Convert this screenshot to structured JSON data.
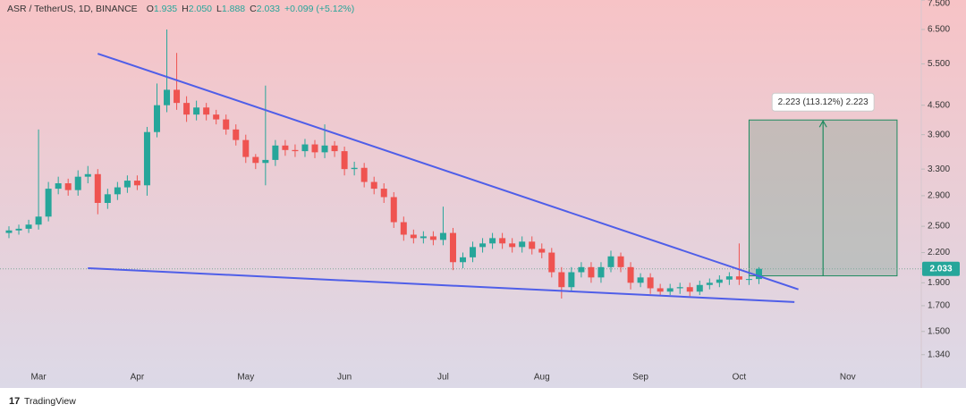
{
  "chart_data": {
    "type": "candlestick",
    "title": "ASR / TetherUS, 1D, BINANCE",
    "legend_values": [
      {
        "label": "O",
        "value": "1.935"
      },
      {
        "label": "H",
        "value": "2.050"
      },
      {
        "label": "L",
        "value": "1.888"
      },
      {
        "label": "C",
        "value": "2.033"
      }
    ],
    "change": "+0.099 (+5.12%)",
    "categories": [
      null,
      null,
      null,
      "Mar",
      null,
      null,
      null,
      null,
      null,
      null,
      null,
      null,
      null,
      "Apr",
      null,
      null,
      null,
      null,
      null,
      null,
      null,
      null,
      null,
      null,
      "May",
      null,
      null,
      null,
      null,
      null,
      null,
      null,
      null,
      null,
      "Jun",
      null,
      null,
      null,
      null,
      null,
      null,
      null,
      null,
      null,
      "Jul",
      null,
      null,
      null,
      null,
      null,
      null,
      null,
      null,
      null,
      "Aug",
      null,
      null,
      null,
      null,
      null,
      null,
      null,
      null,
      null,
      "Sep",
      null,
      null,
      null,
      null,
      null,
      null,
      null,
      null,
      null,
      "Oct",
      null,
      null,
      null,
      null,
      null,
      null,
      null,
      null,
      null,
      null,
      "Nov",
      null,
      null,
      null,
      null,
      null,
      null,
      null
    ],
    "open": [
      2.42,
      2.45,
      2.47,
      2.52,
      2.62,
      3.0,
      3.08,
      2.98,
      3.18,
      3.22,
      2.8,
      2.92,
      3.02,
      3.12,
      3.05,
      3.95,
      4.5,
      4.85,
      4.55,
      4.3,
      4.45,
      4.3,
      4.2,
      4.0,
      3.8,
      3.5,
      3.4,
      3.45,
      3.7,
      3.62,
      3.6,
      3.72,
      3.58,
      3.7,
      3.6,
      3.3,
      3.32,
      3.1,
      3.0,
      2.88,
      2.55,
      2.4,
      2.36,
      2.38,
      2.34,
      2.42,
      2.1,
      2.15,
      2.26,
      2.3,
      2.36,
      2.3,
      2.26,
      2.32,
      2.24,
      2.2,
      2.0,
      1.86,
      2.0,
      2.05,
      1.95,
      2.05,
      2.16,
      2.05,
      1.9,
      1.95,
      1.85,
      1.82,
      1.85,
      1.86,
      1.82,
      1.88,
      1.9,
      1.93,
      1.96,
      1.93,
      1.935,
      null,
      null,
      null,
      null,
      null,
      null,
      null,
      null,
      null,
      null,
      null,
      null,
      null,
      null,
      null,
      null
    ],
    "high": [
      2.5,
      2.52,
      2.58,
      4.0,
      3.1,
      3.18,
      3.15,
      3.28,
      3.35,
      3.3,
      3.0,
      3.1,
      3.2,
      3.2,
      4.05,
      5.0,
      6.5,
      5.8,
      4.7,
      4.6,
      4.55,
      4.4,
      4.3,
      4.1,
      3.9,
      3.55,
      4.95,
      3.8,
      3.8,
      3.72,
      3.82,
      3.8,
      4.1,
      3.78,
      3.68,
      3.42,
      3.4,
      3.18,
      3.08,
      2.95,
      2.62,
      2.46,
      2.44,
      2.44,
      2.75,
      2.48,
      2.2,
      2.32,
      2.36,
      2.42,
      2.42,
      2.36,
      2.38,
      2.38,
      2.3,
      2.25,
      2.05,
      2.05,
      2.1,
      2.1,
      2.1,
      2.22,
      2.2,
      2.1,
      1.99,
      1.99,
      1.89,
      1.89,
      1.9,
      1.9,
      1.92,
      1.94,
      1.97,
      2.0,
      2.3,
      1.98,
      2.05,
      null,
      null,
      null,
      null,
      null,
      null,
      null,
      null,
      null,
      null,
      null,
      null,
      null,
      null,
      null,
      null
    ],
    "low": [
      2.36,
      2.4,
      2.42,
      2.46,
      2.56,
      2.92,
      2.9,
      2.9,
      3.08,
      2.65,
      2.72,
      2.84,
      2.94,
      2.98,
      2.9,
      3.85,
      4.35,
      4.4,
      4.15,
      4.18,
      4.18,
      4.1,
      3.9,
      3.7,
      3.4,
      3.3,
      3.05,
      3.35,
      3.52,
      3.5,
      3.5,
      3.48,
      3.48,
      3.5,
      3.2,
      3.2,
      3.02,
      2.92,
      2.8,
      2.48,
      2.33,
      2.3,
      2.3,
      2.28,
      2.28,
      2.02,
      2.04,
      2.1,
      2.2,
      2.24,
      2.24,
      2.2,
      2.2,
      2.18,
      2.14,
      1.95,
      1.76,
      1.82,
      1.95,
      1.9,
      1.9,
      2.0,
      2.0,
      1.84,
      1.86,
      1.8,
      1.78,
      1.79,
      1.8,
      1.78,
      1.79,
      1.84,
      1.86,
      1.88,
      1.88,
      1.88,
      1.888,
      null,
      null,
      null,
      null,
      null,
      null,
      null,
      null,
      null,
      null,
      null,
      null,
      null,
      null,
      null,
      null
    ],
    "close": [
      2.45,
      2.47,
      2.52,
      2.62,
      3.0,
      3.08,
      2.98,
      3.18,
      3.22,
      2.8,
      2.92,
      3.02,
      3.12,
      3.05,
      3.95,
      4.5,
      4.85,
      4.55,
      4.3,
      4.45,
      4.3,
      4.2,
      4.0,
      3.8,
      3.5,
      3.4,
      3.45,
      3.7,
      3.62,
      3.6,
      3.72,
      3.58,
      3.7,
      3.6,
      3.3,
      3.32,
      3.1,
      3.0,
      2.88,
      2.55,
      2.4,
      2.36,
      2.38,
      2.34,
      2.42,
      2.1,
      2.15,
      2.26,
      2.3,
      2.36,
      2.3,
      2.26,
      2.32,
      2.24,
      2.2,
      2.0,
      1.86,
      2.0,
      2.05,
      1.95,
      2.05,
      2.16,
      2.05,
      1.9,
      1.95,
      1.85,
      1.82,
      1.85,
      1.86,
      1.82,
      1.88,
      1.9,
      1.93,
      1.96,
      1.93,
      1.935,
      2.033,
      null,
      null,
      null,
      null,
      null,
      null,
      null,
      null,
      null,
      null,
      null,
      null,
      null,
      null,
      null,
      null
    ],
    "up_color": "#26a69a",
    "down_color": "#ef5350",
    "log_scale": true,
    "ylim": [
      1.15,
      7.5
    ],
    "yticks": [
      {
        "value": 1.34,
        "label": "1.340"
      },
      {
        "value": 1.5,
        "label": "1.500"
      },
      {
        "value": 1.7,
        "label": "1.700"
      },
      {
        "value": 1.9,
        "label": "1.900"
      },
      {
        "value": 2.2,
        "label": "2.200"
      },
      {
        "value": 2.5,
        "label": "2.500"
      },
      {
        "value": 2.9,
        "label": "2.900"
      },
      {
        "value": 3.3,
        "label": "3.300"
      },
      {
        "value": 3.9,
        "label": "3.900"
      },
      {
        "value": 4.5,
        "label": "4.500"
      },
      {
        "value": 5.5,
        "label": "5.500"
      },
      {
        "value": 6.5,
        "label": "6.500"
      },
      {
        "value": 7.5,
        "label": "7.500"
      }
    ],
    "last_price": 2.033,
    "trendlines": [
      {
        "x": [
          9,
          80
        ],
        "y": [
          5.78,
          1.84
        ],
        "color": "#4f5ee8"
      },
      {
        "x": [
          8,
          79.6
        ],
        "y": [
          2.04,
          1.73
        ],
        "color": "#4f5ee8"
      }
    ],
    "measure": {
      "x": [
        75,
        90
      ],
      "y": [
        1.965,
        4.188
      ],
      "label": "2.223 (113.12%) 2.223",
      "color": "#1e8a5e"
    },
    "branding": "TradingView"
  }
}
